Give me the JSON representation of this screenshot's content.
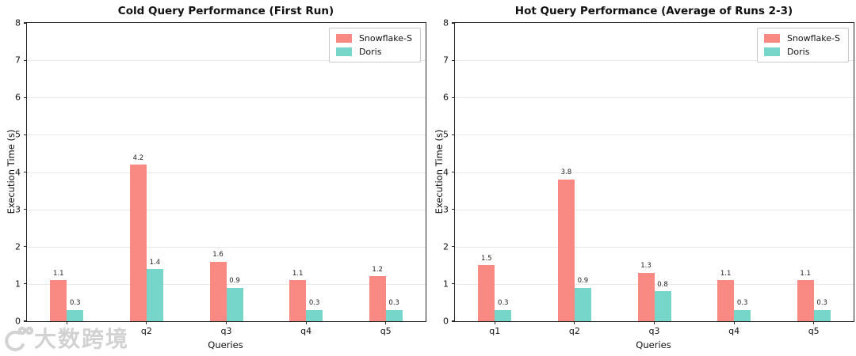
{
  "figure": {
    "background": "#ffffff",
    "axis_color": "#262626",
    "grid_color": "#e8e8e8"
  },
  "watermark": {
    "logo_icon": "smiley-100-logo",
    "brand_text": "大数跨境",
    "color": "#d2d2d2"
  },
  "chart_data": [
    {
      "type": "bar",
      "title": "Cold Query Performance (First Run)",
      "xlabel": "Queries",
      "ylabel": "Execution Time (s)",
      "ylim": [
        0,
        8
      ],
      "yticks": [
        0,
        1,
        2,
        3,
        4,
        5,
        6,
        7,
        8
      ],
      "grid": "horizontal",
      "legend_position": "upper right",
      "categories": [
        "q1",
        "q2",
        "q3",
        "q4",
        "q5"
      ],
      "series": [
        {
          "name": "Snowflake-S",
          "color": "#f98a83",
          "values": [
            1.1,
            4.2,
            1.6,
            1.1,
            1.2
          ]
        },
        {
          "name": "Doris",
          "color": "#76d6c9",
          "values": [
            0.3,
            1.4,
            0.9,
            0.3,
            0.3
          ]
        }
      ]
    },
    {
      "type": "bar",
      "title": "Hot Query Performance (Average of Runs 2-3)",
      "xlabel": "Queries",
      "ylabel": "Execution Time (s)",
      "ylim": [
        0,
        8
      ],
      "yticks": [
        0,
        1,
        2,
        3,
        4,
        5,
        6,
        7,
        8
      ],
      "grid": "horizontal",
      "legend_position": "upper right",
      "categories": [
        "q1",
        "q2",
        "q3",
        "q4",
        "q5"
      ],
      "series": [
        {
          "name": "Snowflake-S",
          "color": "#f98a83",
          "values": [
            1.5,
            3.8,
            1.3,
            1.1,
            1.1
          ]
        },
        {
          "name": "Doris",
          "color": "#76d6c9",
          "values": [
            0.3,
            0.9,
            0.8,
            0.3,
            0.3
          ]
        }
      ]
    }
  ]
}
